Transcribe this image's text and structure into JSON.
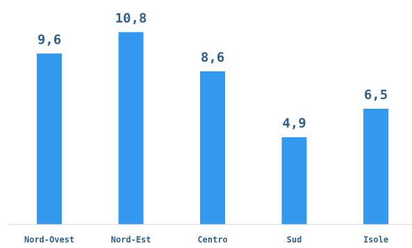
{
  "colors": {
    "bar": "#3399ee",
    "value_label": "#2f5f8f",
    "category_label": "#2f5f8f",
    "axis": "#d6d6d6",
    "background": "#ffffff"
  },
  "chart_data": {
    "type": "bar",
    "categories": [
      "Nord-Ovest",
      "Nord-Est",
      "Centro",
      "Sud",
      "Isole"
    ],
    "values": [
      9.6,
      10.8,
      8.6,
      4.9,
      6.5
    ],
    "value_labels": [
      "9,6",
      "10,8",
      "8,6",
      "4,9",
      "6,5"
    ],
    "ylim": [
      0,
      12
    ],
    "grid": false,
    "legend": "none"
  }
}
